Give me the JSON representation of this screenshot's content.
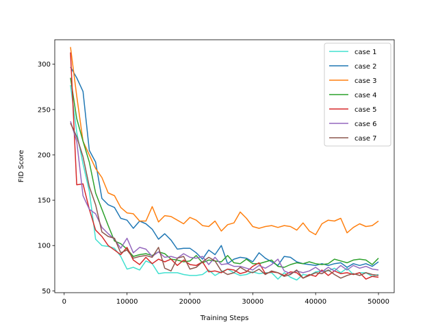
{
  "chart_data": {
    "type": "line",
    "title": "",
    "xlabel": "Training Steps",
    "ylabel": "FID Score",
    "xlim": [
      -1500,
      52500
    ],
    "ylim": [
      48,
      327
    ],
    "xticks": [
      0,
      10000,
      20000,
      30000,
      40000,
      50000
    ],
    "yticks": [
      50,
      100,
      150,
      200,
      250,
      300
    ],
    "grid": false,
    "legend_position": "top-right",
    "x": [
      1000,
      2000,
      3000,
      4000,
      5000,
      6000,
      7000,
      8000,
      9000,
      10000,
      11000,
      12000,
      13000,
      14000,
      15000,
      16000,
      17000,
      18000,
      19000,
      20000,
      21000,
      22000,
      23000,
      24000,
      25000,
      26000,
      27000,
      28000,
      29000,
      30000,
      31000,
      32000,
      33000,
      34000,
      35000,
      36000,
      37000,
      38000,
      39000,
      40000,
      41000,
      42000,
      43000,
      44000,
      45000,
      46000,
      47000,
      48000,
      49000,
      50000
    ],
    "series": [
      {
        "name": "case 1",
        "color": "#40e0d0",
        "values": [
          277,
          225,
          190,
          160,
          107,
          100,
          99,
          97,
          88,
          74,
          76,
          73,
          83,
          80,
          69,
          70,
          70,
          70,
          68,
          67,
          67,
          68,
          73,
          67,
          71,
          74,
          70,
          67,
          68,
          71,
          69,
          70,
          70,
          63,
          70,
          65,
          62,
          68,
          67,
          71,
          72,
          72,
          75,
          70,
          75,
          68,
          70,
          70,
          66,
          68
        ]
      },
      {
        "name": "case 2",
        "color": "#1f77b4",
        "values": [
          297,
          285,
          270,
          205,
          192,
          152,
          145,
          142,
          130,
          128,
          119,
          127,
          124,
          118,
          107,
          113,
          106,
          96,
          97,
          97,
          92,
          85,
          95,
          90,
          100,
          80,
          85,
          87,
          86,
          82,
          92,
          86,
          82,
          78,
          88,
          87,
          82,
          80,
          79,
          78,
          80,
          78,
          80,
          81,
          76,
          80,
          78,
          80,
          77,
          82
        ]
      },
      {
        "name": "case 3",
        "color": "#ff7f0e",
        "values": [
          319,
          265,
          215,
          200,
          185,
          175,
          158,
          155,
          142,
          136,
          135,
          127,
          127,
          143,
          126,
          133,
          132,
          128,
          124,
          131,
          128,
          122,
          121,
          127,
          116,
          123,
          125,
          137,
          130,
          121,
          119,
          121,
          122,
          120,
          122,
          121,
          117,
          125,
          116,
          112,
          124,
          128,
          127,
          130,
          114,
          120,
          124,
          121,
          122,
          127
        ]
      },
      {
        "name": "case 4",
        "color": "#2ca02c",
        "values": [
          285,
          240,
          215,
          192,
          158,
          140,
          122,
          105,
          102,
          96,
          88,
          90,
          91,
          89,
          93,
          91,
          85,
          84,
          82,
          83,
          89,
          81,
          84,
          83,
          82,
          89,
          81,
          80,
          85,
          80,
          80,
          82,
          84,
          77,
          76,
          79,
          81,
          80,
          82,
          80,
          79,
          80,
          85,
          83,
          81,
          84,
          85,
          84,
          79,
          86
        ]
      },
      {
        "name": "case 5",
        "color": "#d62728",
        "values": [
          313,
          167,
          168,
          140,
          117,
          110,
          100,
          95,
          90,
          98,
          84,
          79,
          87,
          80,
          85,
          82,
          85,
          78,
          84,
          79,
          78,
          82,
          71,
          72,
          70,
          74,
          73,
          69,
          71,
          77,
          81,
          69,
          71,
          70,
          67,
          71,
          70,
          64,
          68,
          66,
          73,
          67,
          72,
          69,
          70,
          68,
          70,
          63,
          66,
          65
        ]
      },
      {
        "name": "case 6",
        "color": "#9467bd",
        "values": [
          237,
          215,
          155,
          140,
          135,
          120,
          113,
          107,
          97,
          108,
          92,
          98,
          96,
          88,
          93,
          87,
          88,
          86,
          91,
          87,
          86,
          88,
          79,
          87,
          79,
          80,
          77,
          77,
          75,
          73,
          78,
          75,
          79,
          85,
          72,
          69,
          72,
          70,
          72,
          76,
          71,
          76,
          72,
          78,
          73,
          78,
          75,
          77,
          74,
          73
        ]
      },
      {
        "name": "case 7",
        "color": "#8c564b",
        "values": [
          235,
          220,
          198,
          165,
          145,
          115,
          110,
          108,
          92,
          95,
          86,
          88,
          89,
          87,
          98,
          75,
          72,
          86,
          88,
          74,
          76,
          82,
          87,
          83,
          72,
          68,
          70,
          76,
          72,
          70,
          74,
          68,
          72,
          70,
          66,
          68,
          73,
          64,
          67,
          70,
          69,
          73,
          68,
          64,
          67,
          69,
          67,
          70,
          68,
          67
        ]
      }
    ]
  }
}
